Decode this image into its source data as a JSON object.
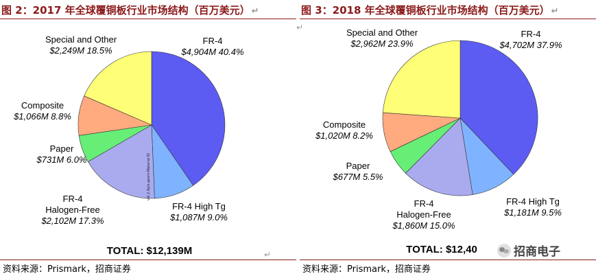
{
  "figures": [
    {
      "title": "图 2：2017 年全球覆铜板行业市场结构（百万美元）",
      "total_label": "TOTAL: $12,139M",
      "source": "资料来源：Prismark，招商证券",
      "watermark": "vol 2 0p/s-gesm-Material ID"
    },
    {
      "title": "图 3：2018 年全球覆铜板行业市场结构（百万美元）",
      "total_label": "TOTAL: $12,40",
      "source": "资料来源：Prismark，招商证券"
    }
  ],
  "logo": {
    "text": "招商电子",
    "icon": "wechat-icon"
  },
  "para_mark": "↵",
  "chart_data": [
    {
      "type": "pie",
      "title": "",
      "unit": "$M",
      "slices": [
        {
          "name": "FR-4",
          "value": 4904,
          "value_label": "$4,904M",
          "percent": 40.4,
          "percent_label": "40.4%",
          "color": "#5c5cf2"
        },
        {
          "name": "FR-4 High Tg",
          "value": 1087,
          "value_label": "$1,087M",
          "percent": 9.0,
          "percent_label": "9.0%",
          "color": "#7fb3ff"
        },
        {
          "name": "FR-4 Halogen-Free",
          "value": 2102,
          "value_label": "$2,102M",
          "percent": 17.3,
          "percent_label": "17.3%",
          "color": "#aaaaee"
        },
        {
          "name": "Paper",
          "value": 731,
          "value_label": "$731M",
          "percent": 6.0,
          "percent_label": "6.0%",
          "color": "#66ee77"
        },
        {
          "name": "Composite",
          "value": 1066,
          "value_label": "$1,066M",
          "percent": 8.8,
          "percent_label": "8.8%",
          "color": "#ffaa7f"
        },
        {
          "name": "Special and Other",
          "value": 2249,
          "value_label": "$2,249M",
          "percent": 18.5,
          "percent_label": "18.5%",
          "color": "#ffff77"
        }
      ]
    },
    {
      "type": "pie",
      "title": "",
      "unit": "$M",
      "slices": [
        {
          "name": "FR-4",
          "value": 4702,
          "value_label": "$4,702M",
          "percent": 37.9,
          "percent_label": "37.9%",
          "color": "#5c5cf2"
        },
        {
          "name": "FR-4 High Tg",
          "value": 1181,
          "value_label": "$1,181M",
          "percent": 9.5,
          "percent_label": "9.5%",
          "color": "#7fb3ff"
        },
        {
          "name": "FR-4 Halogen-Free",
          "value": 1860,
          "value_label": "$1,860M",
          "percent": 15.0,
          "percent_label": "15.0%",
          "color": "#aaaaee"
        },
        {
          "name": "Paper",
          "value": 677,
          "value_label": "$677M",
          "percent": 5.5,
          "percent_label": "5.5%",
          "color": "#66ee77"
        },
        {
          "name": "Composite",
          "value": 1020,
          "value_label": "$1,020M",
          "percent": 8.2,
          "percent_label": "8.2%",
          "color": "#ffaa7f"
        },
        {
          "name": "Special and Other",
          "value": 2962,
          "value_label": "$2,962M",
          "percent": 23.9,
          "percent_label": "23.9%",
          "color": "#ffff77"
        }
      ]
    }
  ]
}
